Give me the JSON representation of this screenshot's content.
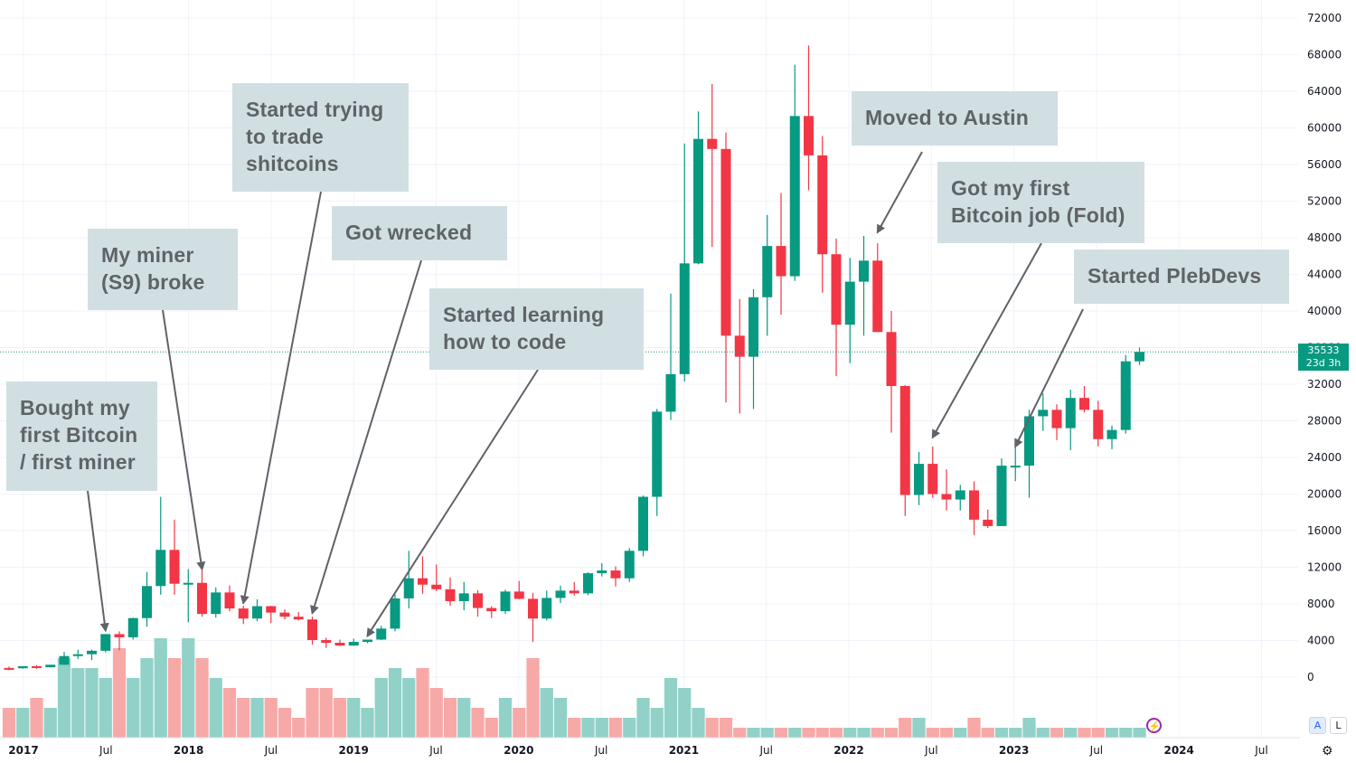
{
  "chart_data": {
    "type": "candlestick",
    "title": "",
    "xlabel": "",
    "ylabel": "",
    "ylim": [
      -5000,
      73000
    ],
    "y_ticks": [
      0,
      4000,
      8000,
      12000,
      16000,
      20000,
      24000,
      28000,
      32000,
      36000,
      40000,
      44000,
      48000,
      52000,
      56000,
      60000,
      64000,
      68000,
      72000
    ],
    "x_ticks": [
      "2017",
      "Jul",
      "2018",
      "Jul",
      "2019",
      "Jul",
      "2020",
      "Jul",
      "2021",
      "Jul",
      "2022",
      "Jul",
      "2023",
      "Jul",
      "2024",
      "Jul"
    ],
    "grid": true,
    "up_color": "#089981",
    "down_color": "#f23645",
    "volume_up_color": "#91d1c7",
    "volume_down_color": "#f7a9a7",
    "candles": [
      {
        "date": "2017-01",
        "open": 1000,
        "high": 1150,
        "low": 750,
        "close": 970,
        "volume": 3
      },
      {
        "date": "2017-02",
        "open": 970,
        "high": 1200,
        "low": 920,
        "close": 1190,
        "volume": 3
      },
      {
        "date": "2017-03",
        "open": 1190,
        "high": 1300,
        "low": 900,
        "close": 1080,
        "volume": 4
      },
      {
        "date": "2017-04",
        "open": 1080,
        "high": 1350,
        "low": 1050,
        "close": 1350,
        "volume": 3
      },
      {
        "date": "2017-05",
        "open": 1350,
        "high": 2750,
        "low": 1350,
        "close": 2300,
        "volume": 8
      },
      {
        "date": "2017-06",
        "open": 2300,
        "high": 3000,
        "low": 2000,
        "close": 2500,
        "volume": 7
      },
      {
        "date": "2017-07",
        "open": 2500,
        "high": 3000,
        "low": 1850,
        "close": 2880,
        "volume": 7
      },
      {
        "date": "2017-08",
        "open": 2880,
        "high": 4700,
        "low": 2700,
        "close": 4700,
        "volume": 6
      },
      {
        "date": "2017-09",
        "open": 4700,
        "high": 5000,
        "low": 2950,
        "close": 4350,
        "volume": 9
      },
      {
        "date": "2017-10",
        "open": 4350,
        "high": 6500,
        "low": 4100,
        "close": 6450,
        "volume": 6
      },
      {
        "date": "2017-11",
        "open": 6450,
        "high": 11500,
        "low": 5500,
        "close": 9950,
        "volume": 8
      },
      {
        "date": "2017-12",
        "open": 9950,
        "high": 19700,
        "low": 9000,
        "close": 13900,
        "volume": 10
      },
      {
        "date": "2018-01",
        "open": 13900,
        "high": 17200,
        "low": 9000,
        "close": 10200,
        "volume": 8
      },
      {
        "date": "2018-02",
        "open": 10200,
        "high": 11800,
        "low": 6000,
        "close": 10300,
        "volume": 10
      },
      {
        "date": "2018-03",
        "open": 10300,
        "high": 11700,
        "low": 6600,
        "close": 6900,
        "volume": 8
      },
      {
        "date": "2018-04",
        "open": 6900,
        "high": 9800,
        "low": 6500,
        "close": 9250,
        "volume": 6
      },
      {
        "date": "2018-05",
        "open": 9250,
        "high": 10000,
        "low": 7200,
        "close": 7500,
        "volume": 5
      },
      {
        "date": "2018-06",
        "open": 7500,
        "high": 7800,
        "low": 5800,
        "close": 6400,
        "volume": 4
      },
      {
        "date": "2018-07",
        "open": 6400,
        "high": 8500,
        "low": 6100,
        "close": 7750,
        "volume": 4
      },
      {
        "date": "2018-08",
        "open": 7750,
        "high": 7800,
        "low": 5900,
        "close": 7050,
        "volume": 4
      },
      {
        "date": "2018-09",
        "open": 7050,
        "high": 7400,
        "low": 6300,
        "close": 6600,
        "volume": 3
      },
      {
        "date": "2018-10",
        "open": 6600,
        "high": 7100,
        "low": 6200,
        "close": 6300,
        "volume": 2
      },
      {
        "date": "2018-11",
        "open": 6300,
        "high": 6600,
        "low": 3550,
        "close": 4050,
        "volume": 5
      },
      {
        "date": "2018-12",
        "open": 4050,
        "high": 4300,
        "low": 3200,
        "close": 3750,
        "volume": 5
      },
      {
        "date": "2019-01",
        "open": 3750,
        "high": 4100,
        "low": 3400,
        "close": 3450,
        "volume": 4
      },
      {
        "date": "2019-02",
        "open": 3450,
        "high": 4200,
        "low": 3400,
        "close": 3850,
        "volume": 4
      },
      {
        "date": "2019-03",
        "open": 3850,
        "high": 4100,
        "low": 3700,
        "close": 4100,
        "volume": 3
      },
      {
        "date": "2019-04",
        "open": 4100,
        "high": 5600,
        "low": 4050,
        "close": 5300,
        "volume": 6
      },
      {
        "date": "2019-05",
        "open": 5300,
        "high": 9000,
        "low": 5000,
        "close": 8600,
        "volume": 7
      },
      {
        "date": "2019-06",
        "open": 8600,
        "high": 13800,
        "low": 7500,
        "close": 10800,
        "volume": 6
      },
      {
        "date": "2019-07",
        "open": 10800,
        "high": 13200,
        "low": 9100,
        "close": 10100,
        "volume": 7
      },
      {
        "date": "2019-08",
        "open": 10100,
        "high": 12300,
        "low": 9400,
        "close": 9600,
        "volume": 5
      },
      {
        "date": "2019-09",
        "open": 9600,
        "high": 10900,
        "low": 7800,
        "close": 8300,
        "volume": 4
      },
      {
        "date": "2019-10",
        "open": 8300,
        "high": 10400,
        "low": 7300,
        "close": 9150,
        "volume": 4
      },
      {
        "date": "2019-11",
        "open": 9150,
        "high": 9500,
        "low": 6600,
        "close": 7550,
        "volume": 3
      },
      {
        "date": "2019-12",
        "open": 7550,
        "high": 7750,
        "low": 6450,
        "close": 7200,
        "volume": 2
      },
      {
        "date": "2020-01",
        "open": 7200,
        "high": 9550,
        "low": 6900,
        "close": 9350,
        "volume": 4
      },
      {
        "date": "2020-02",
        "open": 9350,
        "high": 10500,
        "low": 8500,
        "close": 8550,
        "volume": 3
      },
      {
        "date": "2020-03",
        "open": 8550,
        "high": 9200,
        "low": 3850,
        "close": 6400,
        "volume": 8
      },
      {
        "date": "2020-04",
        "open": 6400,
        "high": 9450,
        "low": 6200,
        "close": 8650,
        "volume": 5
      },
      {
        "date": "2020-05",
        "open": 8650,
        "high": 10000,
        "low": 8100,
        "close": 9450,
        "volume": 4
      },
      {
        "date": "2020-06",
        "open": 9450,
        "high": 10400,
        "low": 8900,
        "close": 9150,
        "volume": 2
      },
      {
        "date": "2020-07",
        "open": 9150,
        "high": 11450,
        "low": 8950,
        "close": 11350,
        "volume": 2
      },
      {
        "date": "2020-08",
        "open": 11350,
        "high": 12450,
        "low": 11000,
        "close": 11650,
        "volume": 2
      },
      {
        "date": "2020-09",
        "open": 11650,
        "high": 12100,
        "low": 9900,
        "close": 10800,
        "volume": 2
      },
      {
        "date": "2020-10",
        "open": 10800,
        "high": 14100,
        "low": 10400,
        "close": 13800,
        "volume": 2
      },
      {
        "date": "2020-11",
        "open": 13800,
        "high": 19850,
        "low": 13200,
        "close": 19700,
        "volume": 4
      },
      {
        "date": "2020-12",
        "open": 19700,
        "high": 29300,
        "low": 17600,
        "close": 29000,
        "volume": 3
      },
      {
        "date": "2021-01",
        "open": 29000,
        "high": 41900,
        "low": 28100,
        "close": 33100,
        "volume": 6
      },
      {
        "date": "2021-02",
        "open": 33100,
        "high": 58300,
        "low": 32300,
        "close": 45200,
        "volume": 5
      },
      {
        "date": "2021-03",
        "open": 45200,
        "high": 61800,
        "low": 45100,
        "close": 58800,
        "volume": 3
      },
      {
        "date": "2021-04",
        "open": 58800,
        "high": 64800,
        "low": 47000,
        "close": 57700,
        "volume": 2
      },
      {
        "date": "2021-05",
        "open": 57700,
        "high": 59500,
        "low": 30000,
        "close": 37300,
        "volume": 2
      },
      {
        "date": "2021-06",
        "open": 37300,
        "high": 41300,
        "low": 28800,
        "close": 35000,
        "volume": 1
      },
      {
        "date": "2021-07",
        "open": 35000,
        "high": 42400,
        "low": 29300,
        "close": 41500,
        "volume": 1
      },
      {
        "date": "2021-08",
        "open": 41500,
        "high": 50500,
        "low": 37300,
        "close": 47100,
        "volume": 1
      },
      {
        "date": "2021-09",
        "open": 47100,
        "high": 52900,
        "low": 39600,
        "close": 43800,
        "volume": 1
      },
      {
        "date": "2021-10",
        "open": 43800,
        "high": 66900,
        "low": 43300,
        "close": 61300,
        "volume": 1
      },
      {
        "date": "2021-11",
        "open": 61300,
        "high": 69000,
        "low": 53200,
        "close": 57000,
        "volume": 1
      },
      {
        "date": "2021-12",
        "open": 57000,
        "high": 59100,
        "low": 42000,
        "close": 46200,
        "volume": 1
      },
      {
        "date": "2022-01",
        "open": 46200,
        "high": 47900,
        "low": 32900,
        "close": 38500,
        "volume": 1
      },
      {
        "date": "2022-02",
        "open": 38500,
        "high": 45800,
        "low": 34300,
        "close": 43200,
        "volume": 1
      },
      {
        "date": "2022-03",
        "open": 43200,
        "high": 48200,
        "low": 37300,
        "close": 45500,
        "volume": 1
      },
      {
        "date": "2022-04",
        "open": 45500,
        "high": 47400,
        "low": 37700,
        "close": 37700,
        "volume": 1
      },
      {
        "date": "2022-05",
        "open": 37700,
        "high": 40000,
        "low": 26700,
        "close": 31800,
        "volume": 1
      },
      {
        "date": "2022-06",
        "open": 31800,
        "high": 31900,
        "low": 17600,
        "close": 19900,
        "volume": 2
      },
      {
        "date": "2022-07",
        "open": 19900,
        "high": 24600,
        "low": 18800,
        "close": 23300,
        "volume": 2
      },
      {
        "date": "2022-08",
        "open": 23300,
        "high": 25200,
        "low": 19600,
        "close": 20000,
        "volume": 1
      },
      {
        "date": "2022-09",
        "open": 20000,
        "high": 22700,
        "low": 18200,
        "close": 19400,
        "volume": 1
      },
      {
        "date": "2022-10",
        "open": 19400,
        "high": 21000,
        "low": 18200,
        "close": 20400,
        "volume": 1
      },
      {
        "date": "2022-11",
        "open": 20400,
        "high": 21400,
        "low": 15500,
        "close": 17200,
        "volume": 2
      },
      {
        "date": "2022-12",
        "open": 17200,
        "high": 18300,
        "low": 16300,
        "close": 16500,
        "volume": 1
      },
      {
        "date": "2023-01",
        "open": 16500,
        "high": 23900,
        "low": 16500,
        "close": 23100,
        "volume": 1
      },
      {
        "date": "2023-02",
        "open": 23100,
        "high": 25200,
        "low": 21400,
        "close": 23100,
        "volume": 1
      },
      {
        "date": "2023-03",
        "open": 23100,
        "high": 29200,
        "low": 19600,
        "close": 28500,
        "volume": 2
      },
      {
        "date": "2023-04",
        "open": 28500,
        "high": 31000,
        "low": 26900,
        "close": 29200,
        "volume": 1
      },
      {
        "date": "2023-05",
        "open": 29200,
        "high": 29800,
        "low": 25900,
        "close": 27200,
        "volume": 1
      },
      {
        "date": "2023-06",
        "open": 27200,
        "high": 31400,
        "low": 24800,
        "close": 30500,
        "volume": 1
      },
      {
        "date": "2023-07",
        "open": 30500,
        "high": 31800,
        "low": 28900,
        "close": 29200,
        "volume": 1
      },
      {
        "date": "2023-08",
        "open": 29200,
        "high": 30200,
        "low": 25200,
        "close": 26000,
        "volume": 1
      },
      {
        "date": "2023-09",
        "open": 26000,
        "high": 27500,
        "low": 24900,
        "close": 27000,
        "volume": 1
      },
      {
        "date": "2023-10",
        "open": 27000,
        "high": 35200,
        "low": 26600,
        "close": 34500,
        "volume": 1
      },
      {
        "date": "2023-11",
        "open": 34500,
        "high": 36000,
        "low": 34100,
        "close": 35533,
        "volume": 1
      }
    ],
    "current_price": {
      "value": 35533,
      "label": "35533",
      "countdown": "23d 3h"
    },
    "annotations": [
      {
        "text": "Bought my\nfirst Bitcoin\n/ first miner",
        "target_date": "2017-08",
        "target_value": 5100
      },
      {
        "text": "My miner\n(S9) broke",
        "target_date": "2018-03",
        "target_value": 11800
      },
      {
        "text": "Started trying\nto trade\nshitcoins",
        "target_date": "2018-06",
        "target_value": 8100
      },
      {
        "text": "Got wrecked",
        "target_date": "2018-11",
        "target_value": 7000
      },
      {
        "text": "Started learning\nhow to code",
        "target_date": "2019-03",
        "target_value": 4500
      },
      {
        "text": "Moved to Austin",
        "target_date": "2022-04",
        "target_value": 48600
      },
      {
        "text": "Got my first\nBitcoin job (Fold)",
        "target_date": "2022-08",
        "target_value": 26200
      },
      {
        "text": "Started PlebDevs",
        "target_date": "2023-02",
        "target_value": 25200
      }
    ]
  },
  "ui": {
    "auto_btn": "A",
    "log_btn": "L",
    "flash_icon": "lightning-icon",
    "settings_icon": "gear-icon"
  }
}
